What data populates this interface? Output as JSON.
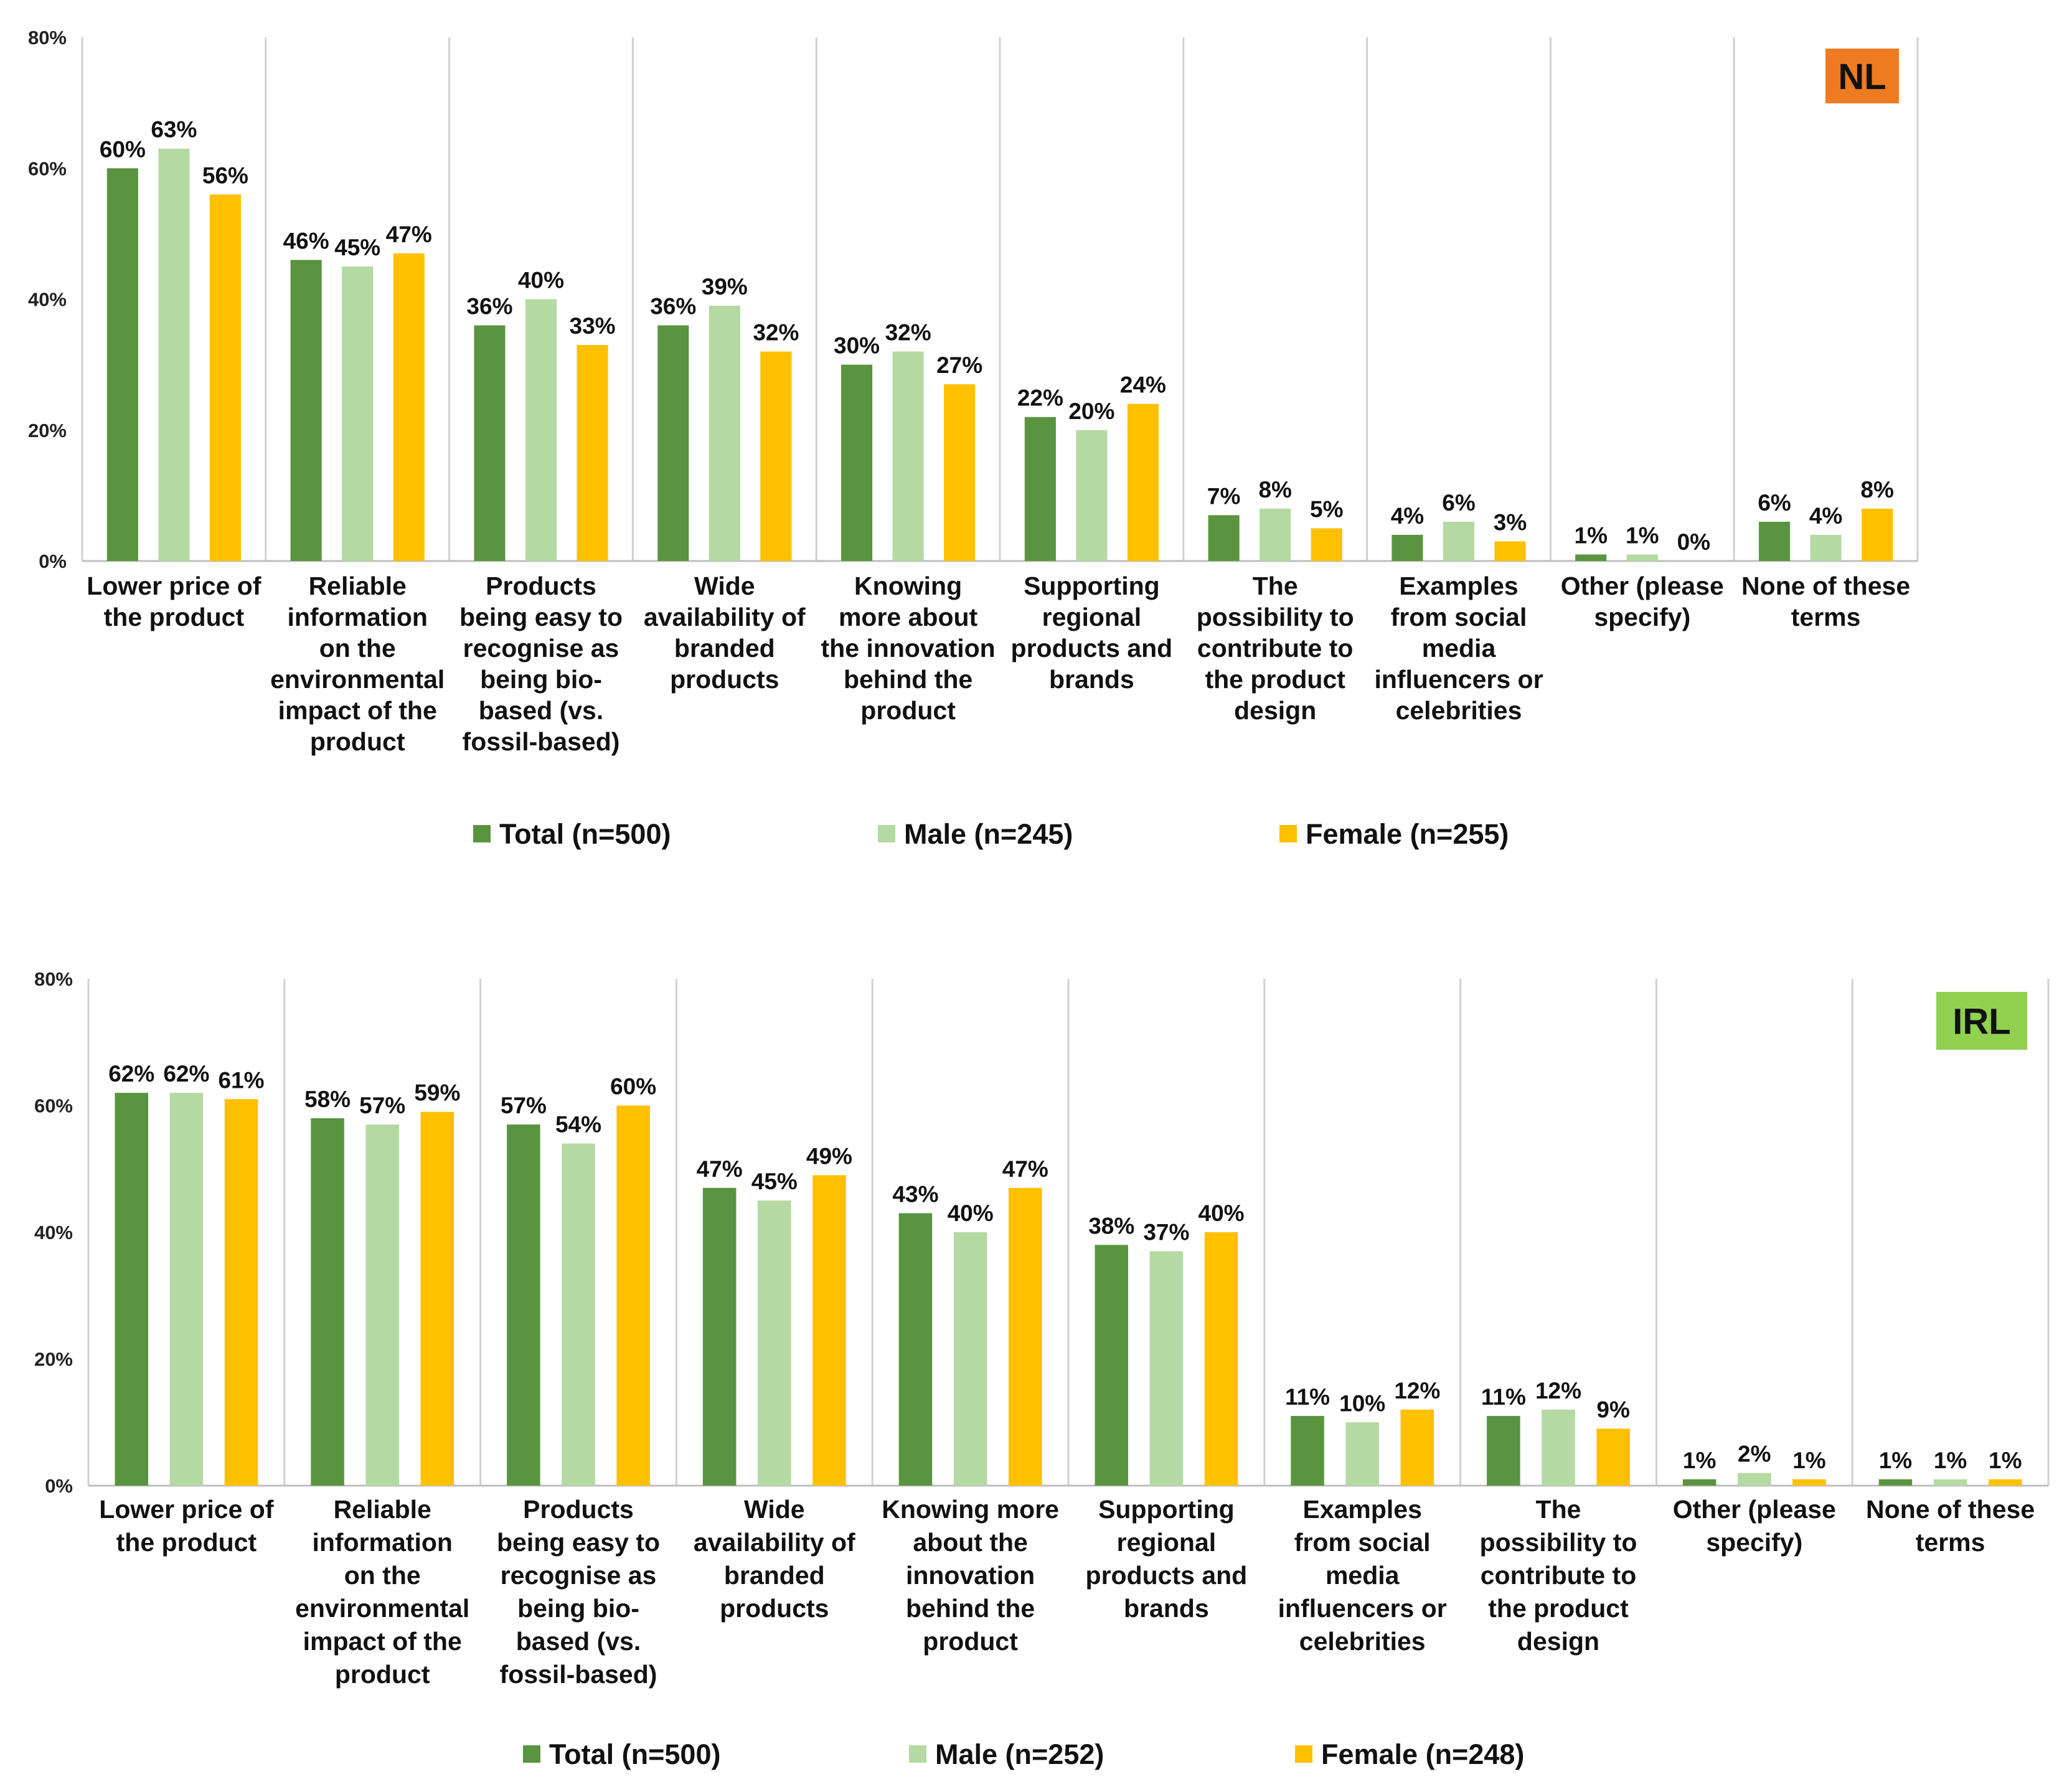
{
  "colors": {
    "total": "#5B9440",
    "male": "#B5D9A3",
    "female": "#FFC000",
    "grid": "#D0D0D0",
    "axis": "#BFBFBF"
  },
  "chart_data": [
    {
      "type": "bar",
      "badge": "NL",
      "badge_color": "#EE7A22",
      "yticks": [
        "0%",
        "20%",
        "40%",
        "60%",
        "80%"
      ],
      "ylim": [
        0,
        80
      ],
      "categories": [
        "Lower price of the product",
        "Reliable information on the environmental impact of the product",
        "Products being easy to recognise as being bio-based (vs. fossil-based)",
        "Wide availability of branded products",
        "Knowing more about the innovation behind the product",
        "Supporting regional products and brands",
        "The possibility to contribute to the product design",
        "Examples from social media influencers or celebrities",
        "Other (please specify)",
        "None of these terms"
      ],
      "category_lines": [
        [
          "Lower price of",
          "the product"
        ],
        [
          "Reliable",
          "information",
          "on the",
          "environmental",
          "impact of the",
          "product"
        ],
        [
          "Products",
          "being easy to",
          "recognise as",
          "being bio-",
          "based (vs.",
          "fossil-based)"
        ],
        [
          "Wide",
          "availability of",
          "branded",
          "products"
        ],
        [
          "Knowing",
          "more about",
          "the innovation",
          "behind the",
          "product"
        ],
        [
          "Supporting",
          "regional",
          "products and",
          "brands"
        ],
        [
          "The",
          "possibility to",
          "contribute to",
          "the product",
          "design"
        ],
        [
          "Examples",
          "from social",
          "media",
          "influencers or",
          "celebrities"
        ],
        [
          "Other (please",
          "specify)"
        ],
        [
          "None of these",
          "terms"
        ]
      ],
      "series": [
        {
          "name": "Total (n=500)",
          "key": "total",
          "values": [
            60,
            46,
            36,
            36,
            30,
            22,
            7,
            4,
            1,
            6
          ],
          "labels": [
            "60%",
            "46%",
            "36%",
            "36%",
            "30%",
            "22%",
            "7%",
            "4%",
            "1%",
            "6%"
          ]
        },
        {
          "name": "Male (n=245)",
          "key": "male",
          "values": [
            63,
            45,
            40,
            39,
            32,
            20,
            8,
            6,
            1,
            4
          ],
          "labels": [
            "63%",
            "45%",
            "40%",
            "39%",
            "32%",
            "20%",
            "8%",
            "6%",
            "1%",
            "4%"
          ]
        },
        {
          "name": "Female (n=255)",
          "key": "female",
          "values": [
            56,
            47,
            33,
            32,
            27,
            24,
            5,
            3,
            0,
            8
          ],
          "labels": [
            "56%",
            "47%",
            "33%",
            "32%",
            "27%",
            "24%",
            "5%",
            "3%",
            "0%",
            "8%"
          ]
        }
      ]
    },
    {
      "type": "bar",
      "badge": "IRL",
      "badge_color": "#92D050",
      "yticks": [
        "0%",
        "20%",
        "40%",
        "60%",
        "80%"
      ],
      "ylim": [
        0,
        80
      ],
      "categories": [
        "Lower price of the product",
        "Reliable information on the environmental impact of the product",
        "Products being easy to recognise as being bio-based (vs. fossil-based)",
        "Wide availability of branded products",
        "Knowing more about the innovation behind the product",
        "Supporting regional products and brands",
        "Examples from social media influencers or celebrities",
        "The possibility to contribute to the product design",
        "Other (please specify)",
        "None of these terms"
      ],
      "category_lines": [
        [
          "Lower price of",
          "the product"
        ],
        [
          "Reliable",
          "information",
          "on the",
          "environmental",
          "impact of the",
          "product"
        ],
        [
          "Products",
          "being easy to",
          "recognise as",
          "being bio-",
          "based (vs.",
          "fossil-based)"
        ],
        [
          "Wide",
          "availability of",
          "branded",
          "products"
        ],
        [
          "Knowing more",
          "about the",
          "innovation",
          "behind the",
          "product"
        ],
        [
          "Supporting",
          "regional",
          "products and",
          "brands"
        ],
        [
          "Examples",
          "from social",
          "media",
          "influencers or",
          "celebrities"
        ],
        [
          "The",
          "possibility to",
          "contribute to",
          "the product",
          "design"
        ],
        [
          "Other (please",
          "specify)"
        ],
        [
          "None of these",
          "terms"
        ]
      ],
      "series": [
        {
          "name": "Total (n=500)",
          "key": "total",
          "values": [
            62,
            58,
            57,
            47,
            43,
            38,
            11,
            11,
            1,
            1
          ],
          "labels": [
            "62%",
            "58%",
            "57%",
            "47%",
            "43%",
            "38%",
            "11%",
            "11%",
            "1%",
            "1%"
          ]
        },
        {
          "name": "Male (n=252)",
          "key": "male",
          "values": [
            62,
            57,
            54,
            45,
            40,
            37,
            10,
            12,
            2,
            1
          ],
          "labels": [
            "62%",
            "57%",
            "54%",
            "45%",
            "40%",
            "37%",
            "10%",
            "12%",
            "2%",
            "1%"
          ]
        },
        {
          "name": "Female (n=248)",
          "key": "female",
          "values": [
            61,
            59,
            60,
            49,
            47,
            40,
            12,
            9,
            1,
            1
          ],
          "labels": [
            "61%",
            "59%",
            "60%",
            "49%",
            "47%",
            "40%",
            "12%",
            "9%",
            "1%",
            "1%"
          ]
        }
      ]
    }
  ]
}
